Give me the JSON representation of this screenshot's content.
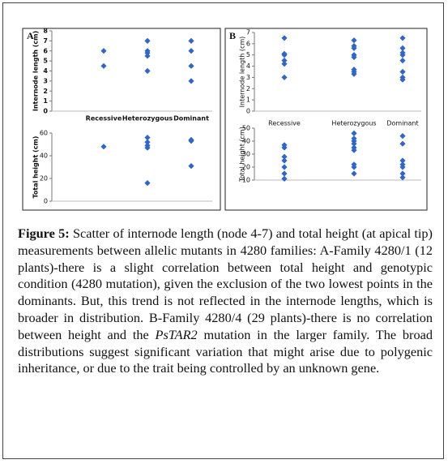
{
  "panel_labels": [
    "A",
    "B"
  ],
  "chart_data": [
    {
      "type": "scatter",
      "ylabel": "Internode length (cm)",
      "categories": [
        "Recessive",
        "Heterozygous",
        "Dominant"
      ],
      "values": [
        [
          6,
          4.5
        ],
        [
          7,
          6,
          5.8,
          5.5,
          4
        ],
        [
          7,
          6,
          4.5,
          3
        ]
      ],
      "color": "#2f66c9",
      "ylim": [
        0,
        8
      ],
      "yticks": [
        0,
        1,
        2,
        3,
        4,
        5,
        6,
        7,
        8
      ]
    },
    {
      "type": "scatter",
      "ylabel": "Total height (cm)",
      "values": [
        [
          48
        ],
        [
          56,
          52,
          49,
          47,
          16
        ],
        [
          54,
          53,
          31
        ]
      ],
      "color": "#2f66c9",
      "ylim": [
        0,
        60
      ],
      "yticks": [
        0,
        20,
        40,
        60
      ]
    },
    {
      "type": "scatter",
      "ylabel": "Internode length (cm)",
      "categories": [
        "Recessive",
        "Heterozygous",
        "Dominant"
      ],
      "values": [
        [
          6.5,
          5.1,
          5.0,
          4.5,
          4.2,
          3.0
        ],
        [
          6.3,
          5.8,
          5.6,
          5.0,
          4.8,
          3.7,
          3.5,
          3.3
        ],
        [
          6.5,
          5.6,
          5.2,
          5.0,
          4.5,
          3.5,
          3.0,
          2.8
        ]
      ],
      "color": "#2f66c9",
      "ylim": [
        0,
        7
      ],
      "yticks": [
        0,
        1,
        2,
        3,
        4,
        5,
        6,
        7
      ]
    },
    {
      "type": "scatter",
      "ylabel": "Total height (cm)",
      "values": [
        [
          37,
          35,
          28,
          25,
          20,
          15,
          11
        ],
        [
          46,
          42,
          40,
          38,
          35,
          33,
          22,
          20,
          15
        ],
        [
          44,
          38,
          25,
          22,
          20,
          15,
          12
        ]
      ],
      "color": "#2f66c9",
      "ylim": [
        10,
        50
      ],
      "yticks": [
        10,
        20,
        30,
        40,
        50
      ]
    }
  ],
  "caption": {
    "label": "Figure 5:",
    "text1": " Scatter of internode length (node 4-7) and total height (at apical tip) measurements between allelic mutants in 4280 families: A-Family 4280/1 (12 plants)-there is a slight correlation between total height and genotypic condition (4280 mutation), given the exclusion of the two lowest points in the dominants. But, this trend is not reflected in the internode lengths, which is broader in distribution. B-Family 4280/4 (29 plants)-there is no correlation between height and the ",
    "italic": "PsTAR2",
    "text2": " mutation in the larger family. The broad distributions suggest significant variation that might arise due to polygenic inheritance, or due to the trait being controlled by an unknown gene."
  }
}
